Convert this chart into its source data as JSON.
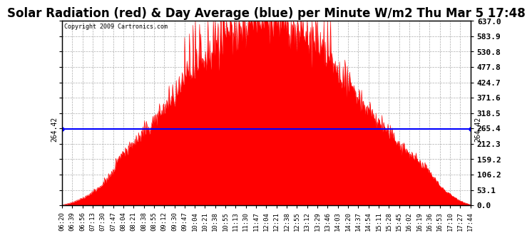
{
  "title": "Solar Radiation (red) & Day Average (blue) per Minute W/m2 Thu Mar 5 17:48",
  "title_fontsize": 12,
  "copyright": "Copyright 2009 Cartronics.com",
  "avg_value": 264.42,
  "ymax": 637.0,
  "ymin": 0.0,
  "yticks": [
    0.0,
    53.1,
    106.2,
    159.2,
    212.3,
    265.4,
    318.5,
    371.6,
    424.7,
    477.8,
    530.8,
    583.9,
    637.0
  ],
  "ytick_labels": [
    "0.0",
    "53.1",
    "106.2",
    "159.2",
    "212.3",
    "265.4",
    "318.5",
    "371.6",
    "424.7",
    "477.8",
    "530.8",
    "583.9",
    "637.0"
  ],
  "xtick_labels": [
    "06:20",
    "06:39",
    "06:56",
    "07:13",
    "07:30",
    "07:47",
    "08:04",
    "08:21",
    "08:38",
    "08:55",
    "09:12",
    "09:30",
    "09:47",
    "10:04",
    "10:21",
    "10:38",
    "10:55",
    "11:13",
    "11:30",
    "11:47",
    "12:04",
    "12:21",
    "12:38",
    "12:55",
    "13:12",
    "13:29",
    "13:46",
    "14:03",
    "14:20",
    "14:37",
    "14:54",
    "15:11",
    "15:28",
    "15:45",
    "16:02",
    "16:19",
    "16:36",
    "16:53",
    "17:10",
    "17:27",
    "17:44"
  ],
  "fill_color": "#FF0000",
  "line_color": "#0000FF",
  "bg_color": "#FFFFFF",
  "grid_color": "#999999",
  "font_family": "monospace",
  "border_color": "#000000"
}
